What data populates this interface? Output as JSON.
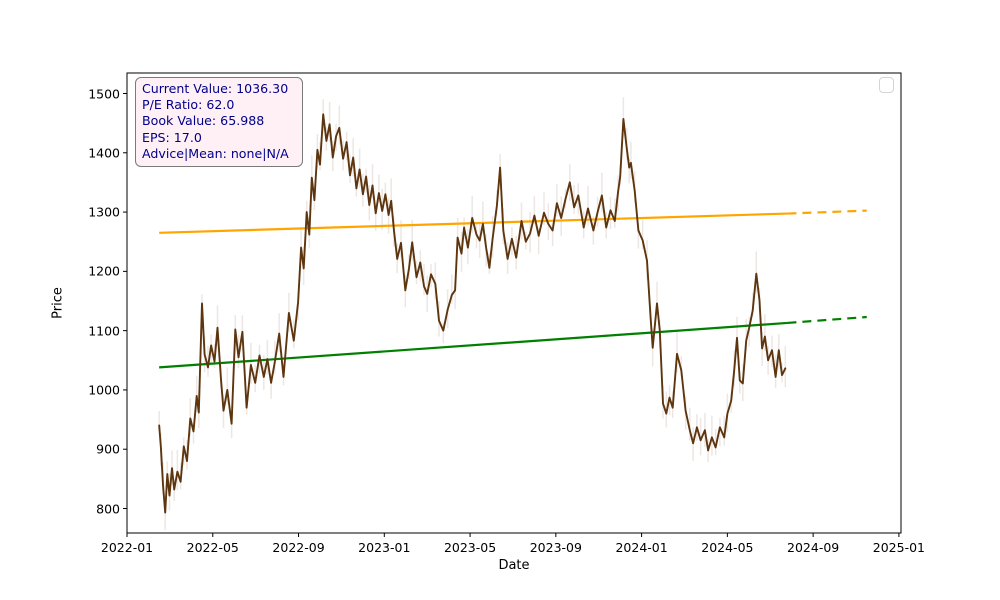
{
  "figure": {
    "background": "#ffffff"
  },
  "axes": {
    "x_label": "Date",
    "y_label": "Price"
  },
  "annotation": {
    "lines": [
      "Current Value: 1036.30",
      "P/E Ratio: 62.0",
      "Book Value: 65.988",
      "EPS: 17.0",
      "Advice|Mean: none|N/A"
    ],
    "text_color": "#00008B",
    "bg_color": "#FFF0F5",
    "border_color": "#7a7a7a"
  },
  "legend": {
    "empty": true
  },
  "chart_data": {
    "type": "line",
    "title": "",
    "xlabel": "Date",
    "ylabel": "Price",
    "x_unit": "months_since_2022-01",
    "xlim_months": [
      0,
      36.1
    ],
    "ylim": [
      758,
      1534
    ],
    "grid": false,
    "legend_position": "upper right (empty frame)",
    "x_ticks": [
      {
        "m": 0,
        "label": "2022-01"
      },
      {
        "m": 4,
        "label": "2022-05"
      },
      {
        "m": 8,
        "label": "2022-09"
      },
      {
        "m": 12,
        "label": "2023-01"
      },
      {
        "m": 16,
        "label": "2023-05"
      },
      {
        "m": 20,
        "label": "2023-09"
      },
      {
        "m": 24,
        "label": "2024-01"
      },
      {
        "m": 28,
        "label": "2024-05"
      },
      {
        "m": 32,
        "label": "2024-09"
      },
      {
        "m": 36,
        "label": "2025-01"
      }
    ],
    "y_ticks": [
      800,
      900,
      1000,
      1100,
      1200,
      1300,
      1400,
      1500
    ],
    "series": [
      {
        "name": "price",
        "color": "#5D350E",
        "line_width": 1.9,
        "points": [
          [
            1.5,
            940
          ],
          [
            1.58,
            903
          ],
          [
            1.68,
            840
          ],
          [
            1.78,
            793
          ],
          [
            1.88,
            858
          ],
          [
            1.98,
            822
          ],
          [
            2.1,
            868
          ],
          [
            2.2,
            832
          ],
          [
            2.35,
            862
          ],
          [
            2.5,
            845
          ],
          [
            2.65,
            905
          ],
          [
            2.8,
            880
          ],
          [
            2.95,
            952
          ],
          [
            3.1,
            930
          ],
          [
            3.25,
            990
          ],
          [
            3.35,
            962
          ],
          [
            3.5,
            1146
          ],
          [
            3.62,
            1060
          ],
          [
            3.78,
            1038
          ],
          [
            3.92,
            1075
          ],
          [
            4.08,
            1048
          ],
          [
            4.22,
            1105
          ],
          [
            4.38,
            1020
          ],
          [
            4.5,
            965
          ],
          [
            4.68,
            1000
          ],
          [
            4.88,
            943
          ],
          [
            5.05,
            1102
          ],
          [
            5.2,
            1055
          ],
          [
            5.38,
            1098
          ],
          [
            5.58,
            970
          ],
          [
            5.78,
            1042
          ],
          [
            5.98,
            1012
          ],
          [
            6.18,
            1058
          ],
          [
            6.38,
            1022
          ],
          [
            6.55,
            1052
          ],
          [
            6.72,
            1012
          ],
          [
            6.9,
            1048
          ],
          [
            7.1,
            1095
          ],
          [
            7.3,
            1022
          ],
          [
            7.55,
            1130
          ],
          [
            7.78,
            1083
          ],
          [
            7.98,
            1148
          ],
          [
            8.12,
            1240
          ],
          [
            8.24,
            1205
          ],
          [
            8.38,
            1300
          ],
          [
            8.5,
            1262
          ],
          [
            8.62,
            1358
          ],
          [
            8.74,
            1320
          ],
          [
            8.88,
            1405
          ],
          [
            9.0,
            1380
          ],
          [
            9.15,
            1465
          ],
          [
            9.3,
            1420
          ],
          [
            9.45,
            1448
          ],
          [
            9.6,
            1392
          ],
          [
            9.75,
            1428
          ],
          [
            9.9,
            1442
          ],
          [
            10.08,
            1390
          ],
          [
            10.24,
            1418
          ],
          [
            10.4,
            1362
          ],
          [
            10.55,
            1392
          ],
          [
            10.7,
            1340
          ],
          [
            10.85,
            1372
          ],
          [
            11.0,
            1330
          ],
          [
            11.15,
            1360
          ],
          [
            11.3,
            1312
          ],
          [
            11.45,
            1345
          ],
          [
            11.6,
            1298
          ],
          [
            11.75,
            1332
          ],
          [
            11.9,
            1302
          ],
          [
            12.05,
            1330
          ],
          [
            12.2,
            1295
          ],
          [
            12.32,
            1319
          ],
          [
            12.45,
            1270
          ],
          [
            12.6,
            1221
          ],
          [
            12.78,
            1248
          ],
          [
            12.98,
            1168
          ],
          [
            13.15,
            1205
          ],
          [
            13.3,
            1249
          ],
          [
            13.5,
            1190
          ],
          [
            13.68,
            1215
          ],
          [
            13.85,
            1175
          ],
          [
            14.0,
            1162
          ],
          [
            14.18,
            1195
          ],
          [
            14.38,
            1179
          ],
          [
            14.55,
            1117
          ],
          [
            14.75,
            1100
          ],
          [
            14.95,
            1135
          ],
          [
            15.15,
            1160
          ],
          [
            15.3,
            1168
          ],
          [
            15.42,
            1257
          ],
          [
            15.6,
            1230
          ],
          [
            15.72,
            1274
          ],
          [
            15.9,
            1240
          ],
          [
            16.1,
            1290
          ],
          [
            16.3,
            1262
          ],
          [
            16.45,
            1252
          ],
          [
            16.6,
            1280
          ],
          [
            16.75,
            1240
          ],
          [
            16.9,
            1206
          ],
          [
            17.05,
            1255
          ],
          [
            17.25,
            1311
          ],
          [
            17.4,
            1375
          ],
          [
            17.55,
            1269
          ],
          [
            17.75,
            1221
          ],
          [
            17.95,
            1255
          ],
          [
            18.15,
            1223
          ],
          [
            18.4,
            1285
          ],
          [
            18.6,
            1250
          ],
          [
            18.8,
            1264
          ],
          [
            19.0,
            1294
          ],
          [
            19.2,
            1260
          ],
          [
            19.45,
            1299
          ],
          [
            19.65,
            1280
          ],
          [
            19.85,
            1269
          ],
          [
            20.05,
            1315
          ],
          [
            20.25,
            1290
          ],
          [
            20.45,
            1322
          ],
          [
            20.65,
            1350
          ],
          [
            20.85,
            1308
          ],
          [
            21.05,
            1328
          ],
          [
            21.3,
            1274
          ],
          [
            21.5,
            1306
          ],
          [
            21.75,
            1269
          ],
          [
            21.95,
            1300
          ],
          [
            22.15,
            1328
          ],
          [
            22.35,
            1274
          ],
          [
            22.55,
            1303
          ],
          [
            22.75,
            1285
          ],
          [
            22.9,
            1333
          ],
          [
            23.0,
            1360
          ],
          [
            23.15,
            1457
          ],
          [
            23.3,
            1410
          ],
          [
            23.42,
            1375
          ],
          [
            23.5,
            1383
          ],
          [
            23.68,
            1336
          ],
          [
            23.85,
            1269
          ],
          [
            24.05,
            1252
          ],
          [
            24.25,
            1218
          ],
          [
            24.42,
            1122
          ],
          [
            24.52,
            1071
          ],
          [
            24.72,
            1146
          ],
          [
            24.85,
            1100
          ],
          [
            25.0,
            977
          ],
          [
            25.15,
            960
          ],
          [
            25.3,
            987
          ],
          [
            25.45,
            970
          ],
          [
            25.65,
            1061
          ],
          [
            25.85,
            1033
          ],
          [
            26.05,
            965
          ],
          [
            26.25,
            932
          ],
          [
            26.4,
            910
          ],
          [
            26.58,
            937
          ],
          [
            26.75,
            915
          ],
          [
            26.95,
            932
          ],
          [
            27.1,
            898
          ],
          [
            27.28,
            920
          ],
          [
            27.45,
            903
          ],
          [
            27.65,
            937
          ],
          [
            27.85,
            920
          ],
          [
            28.0,
            960
          ],
          [
            28.18,
            982
          ],
          [
            28.32,
            1033
          ],
          [
            28.45,
            1088
          ],
          [
            28.58,
            1016
          ],
          [
            28.72,
            1011
          ],
          [
            28.88,
            1083
          ],
          [
            29.02,
            1105
          ],
          [
            29.18,
            1134
          ],
          [
            29.35,
            1196
          ],
          [
            29.5,
            1151
          ],
          [
            29.62,
            1070
          ],
          [
            29.75,
            1090
          ],
          [
            29.9,
            1050
          ],
          [
            30.08,
            1067
          ],
          [
            30.25,
            1022
          ],
          [
            30.4,
            1067
          ],
          [
            30.55,
            1025
          ],
          [
            30.7,
            1036.3
          ]
        ]
      },
      {
        "name": "resistance-trend",
        "color": "#FFA500",
        "line_width": 2.2,
        "solid": [
          [
            1.5,
            1265
          ],
          [
            30.8,
            1297.5
          ]
        ],
        "dashed": [
          [
            30.8,
            1297.5
          ],
          [
            34.5,
            1302.5
          ]
        ]
      },
      {
        "name": "support-trend",
        "color": "#008000",
        "line_width": 2.2,
        "solid": [
          [
            1.5,
            1038
          ],
          [
            30.8,
            1113
          ]
        ],
        "dashed": [
          [
            30.8,
            1113
          ],
          [
            34.5,
            1123
          ]
        ]
      }
    ],
    "hl_whiskers": {
      "visible": true,
      "color": "rgba(151,108,82,0.17)",
      "approx_half_range_units": [
        12,
        38
      ]
    }
  }
}
